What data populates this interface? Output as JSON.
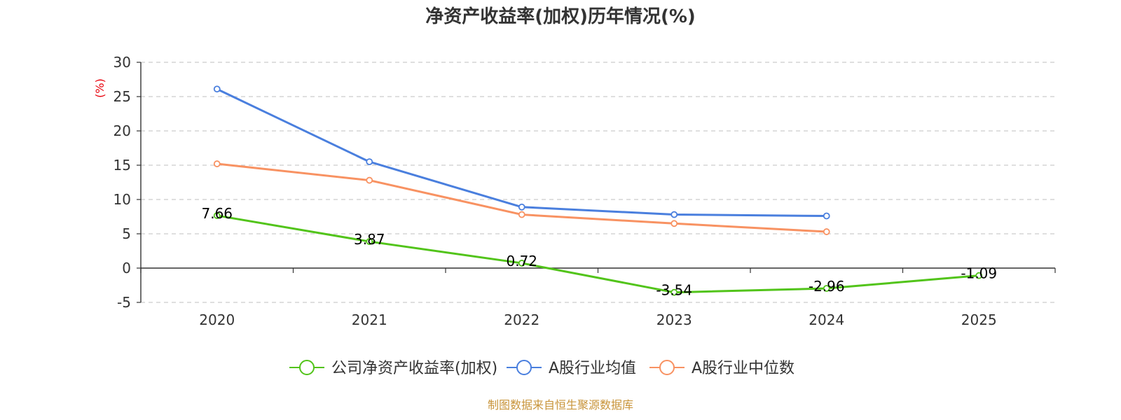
{
  "chart_data": {
    "type": "line",
    "title": "净资产收益率(加权)历年情况(%)",
    "ylabel": "(%)",
    "xlabel": "",
    "categories": [
      "2020",
      "2021",
      "2022",
      "2023",
      "2024",
      "2025"
    ],
    "ylim": [
      -5,
      30
    ],
    "yticks": [
      -5,
      0,
      5,
      10,
      15,
      20,
      25,
      30
    ],
    "grid": true,
    "legend_position": "bottom",
    "series": [
      {
        "name": "公司净资产收益率(加权)",
        "color": "#52c41a",
        "show_labels": true,
        "values": [
          7.66,
          3.87,
          0.72,
          -3.54,
          -2.96,
          -1.09
        ]
      },
      {
        "name": "A股行业均值",
        "color": "#4a7fde",
        "show_labels": false,
        "values": [
          26.1,
          15.5,
          8.9,
          7.8,
          7.6,
          null
        ]
      },
      {
        "name": "A股行业中位数",
        "color": "#f89262",
        "show_labels": false,
        "values": [
          15.2,
          12.8,
          7.8,
          6.5,
          5.3,
          null
        ]
      }
    ]
  },
  "source_text": "制图数据来自恒生聚源数据库",
  "colors": {
    "ylabel": "#e8000b",
    "source": "#c8943a",
    "axis": "#333333",
    "grid": "#cccccc"
  }
}
